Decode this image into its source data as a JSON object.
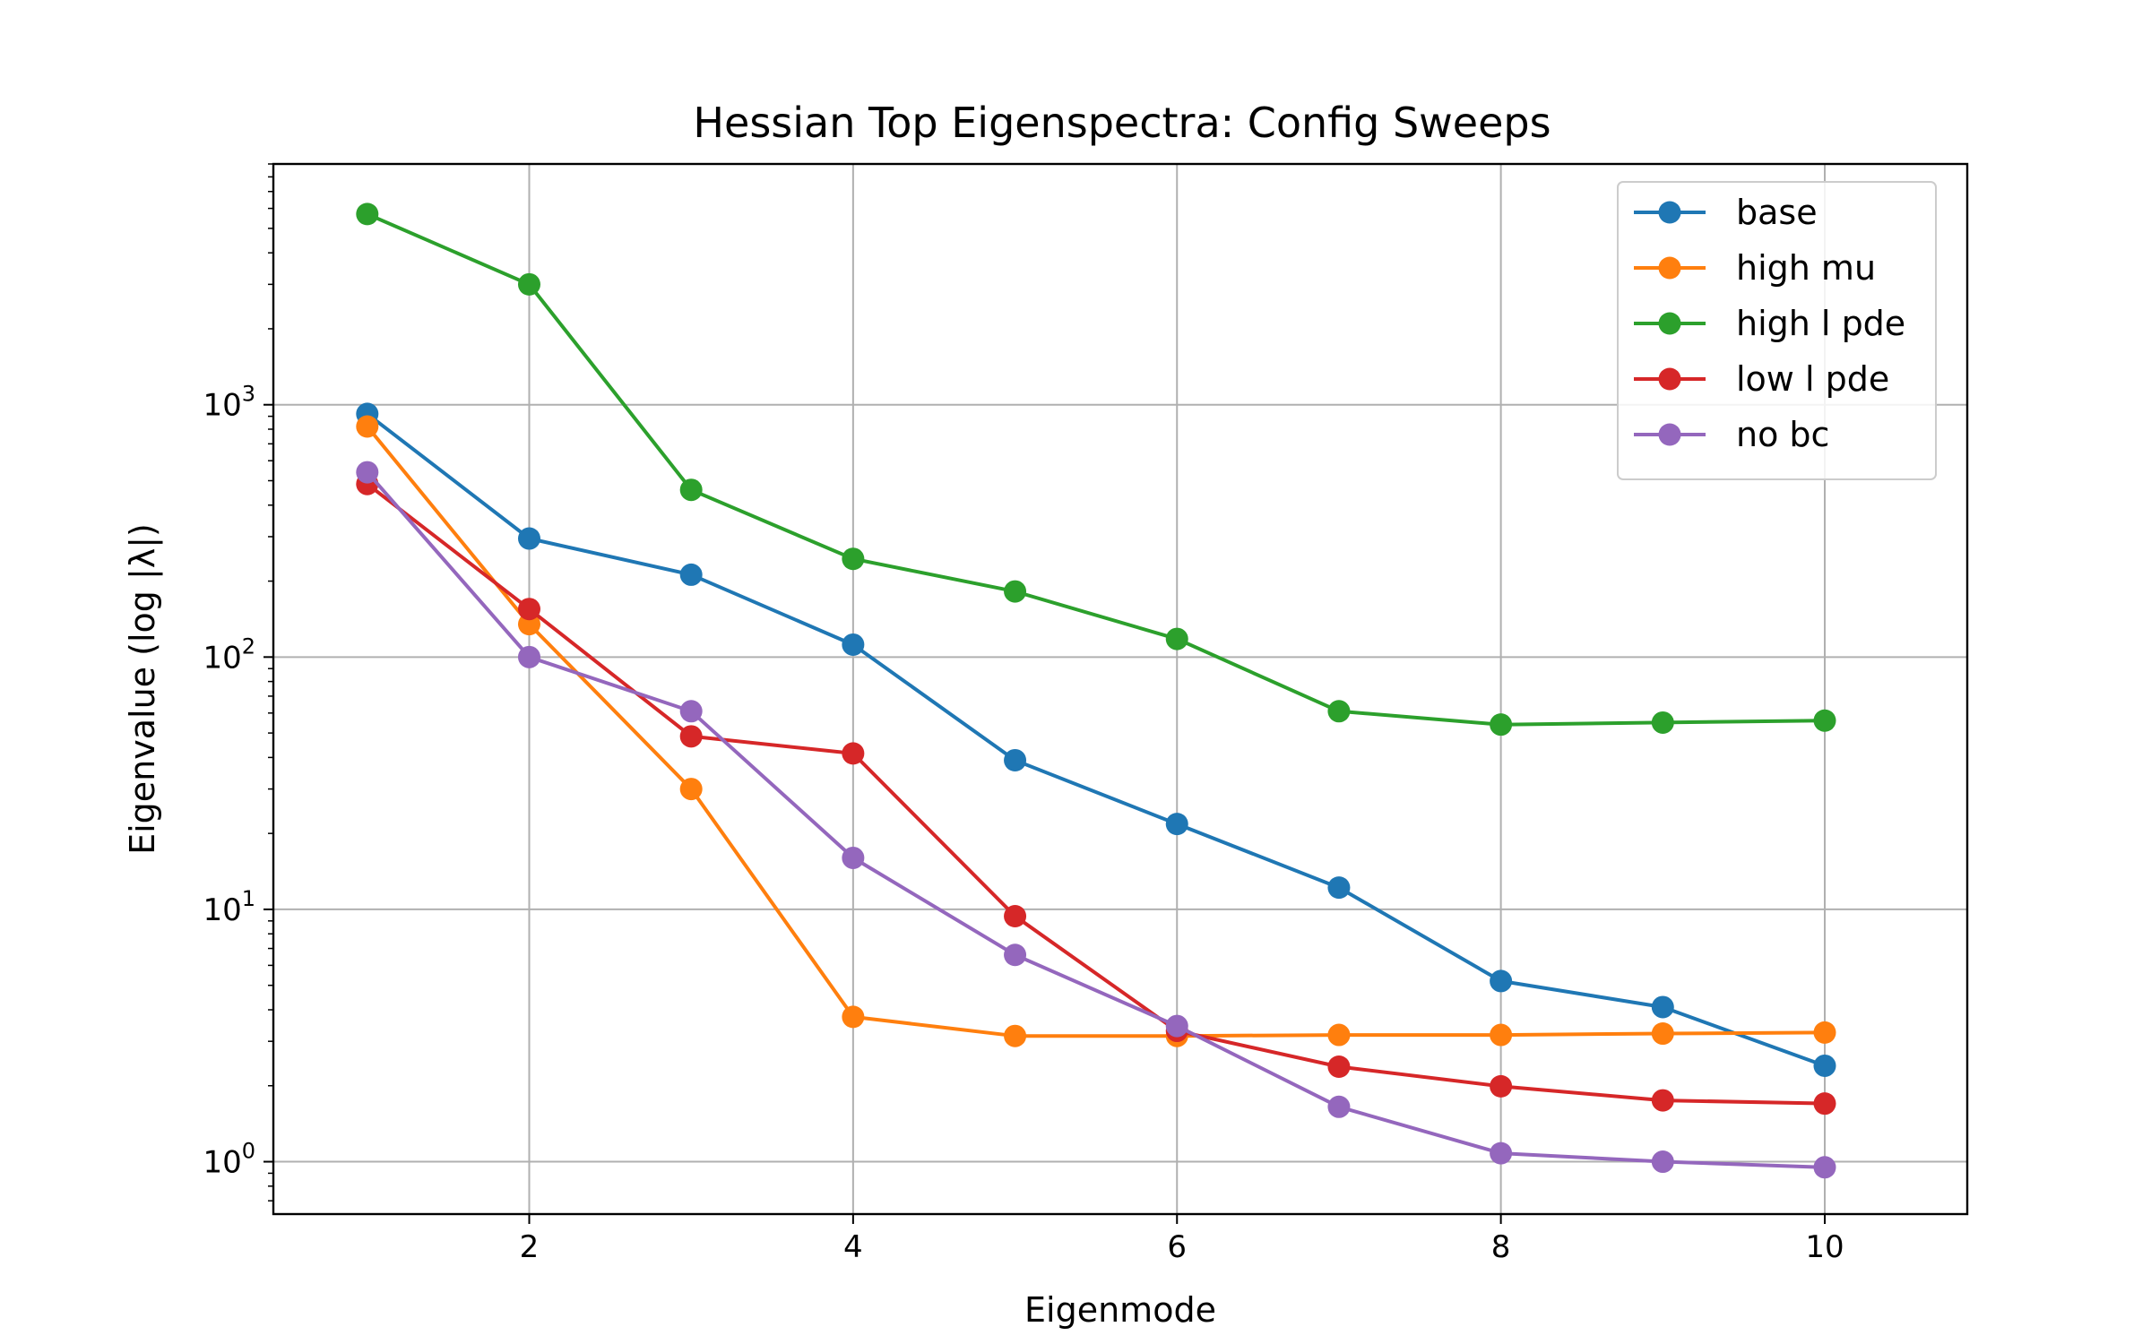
{
  "chart_data": {
    "type": "line",
    "title": "Hessian Top Eigenspectra: Config Sweeps",
    "xlabel": "Eigenmode",
    "ylabel": "Eigenvalue (log |λ|)",
    "yscale": "log",
    "xlim": [
      0.42,
      10.88
    ],
    "ylim": [
      0.62,
      9000
    ],
    "grid": true,
    "legend_position": "top-right",
    "x": [
      1,
      2,
      3,
      4,
      5,
      6,
      7,
      8,
      9,
      10
    ],
    "x_ticks": [
      2,
      4,
      6,
      8,
      10
    ],
    "x_tick_labels": [
      "2",
      "4",
      "6",
      "8",
      "10"
    ],
    "y_major_ticks": [
      {
        "value": 1,
        "base": "10",
        "exp": "0"
      },
      {
        "value": 10,
        "base": "10",
        "exp": "1"
      },
      {
        "value": 100,
        "base": "10",
        "exp": "2"
      },
      {
        "value": 1000,
        "base": "10",
        "exp": "3"
      }
    ],
    "series": [
      {
        "name": "base",
        "color": "#1f77b4",
        "values": [
          920,
          295,
          212,
          112,
          39,
          21.8,
          12.2,
          5.2,
          4.1,
          2.4
        ]
      },
      {
        "name": "high mu",
        "color": "#ff7f0e",
        "values": [
          820,
          135,
          30,
          3.75,
          3.15,
          3.15,
          3.18,
          3.18,
          3.22,
          3.25
        ]
      },
      {
        "name": "high l pde",
        "color": "#2ca02c",
        "values": [
          5700,
          3000,
          460,
          245,
          182,
          118,
          61,
          54,
          55,
          56
        ]
      },
      {
        "name": "low l pde",
        "color": "#d62728",
        "values": [
          485,
          155,
          48.5,
          41.5,
          9.4,
          3.3,
          2.38,
          1.99,
          1.75,
          1.7
        ]
      },
      {
        "name": "no bc",
        "color": "#9467bd",
        "values": [
          540,
          100,
          61,
          16,
          6.6,
          3.45,
          1.65,
          1.08,
          1.0,
          0.95
        ]
      }
    ]
  }
}
